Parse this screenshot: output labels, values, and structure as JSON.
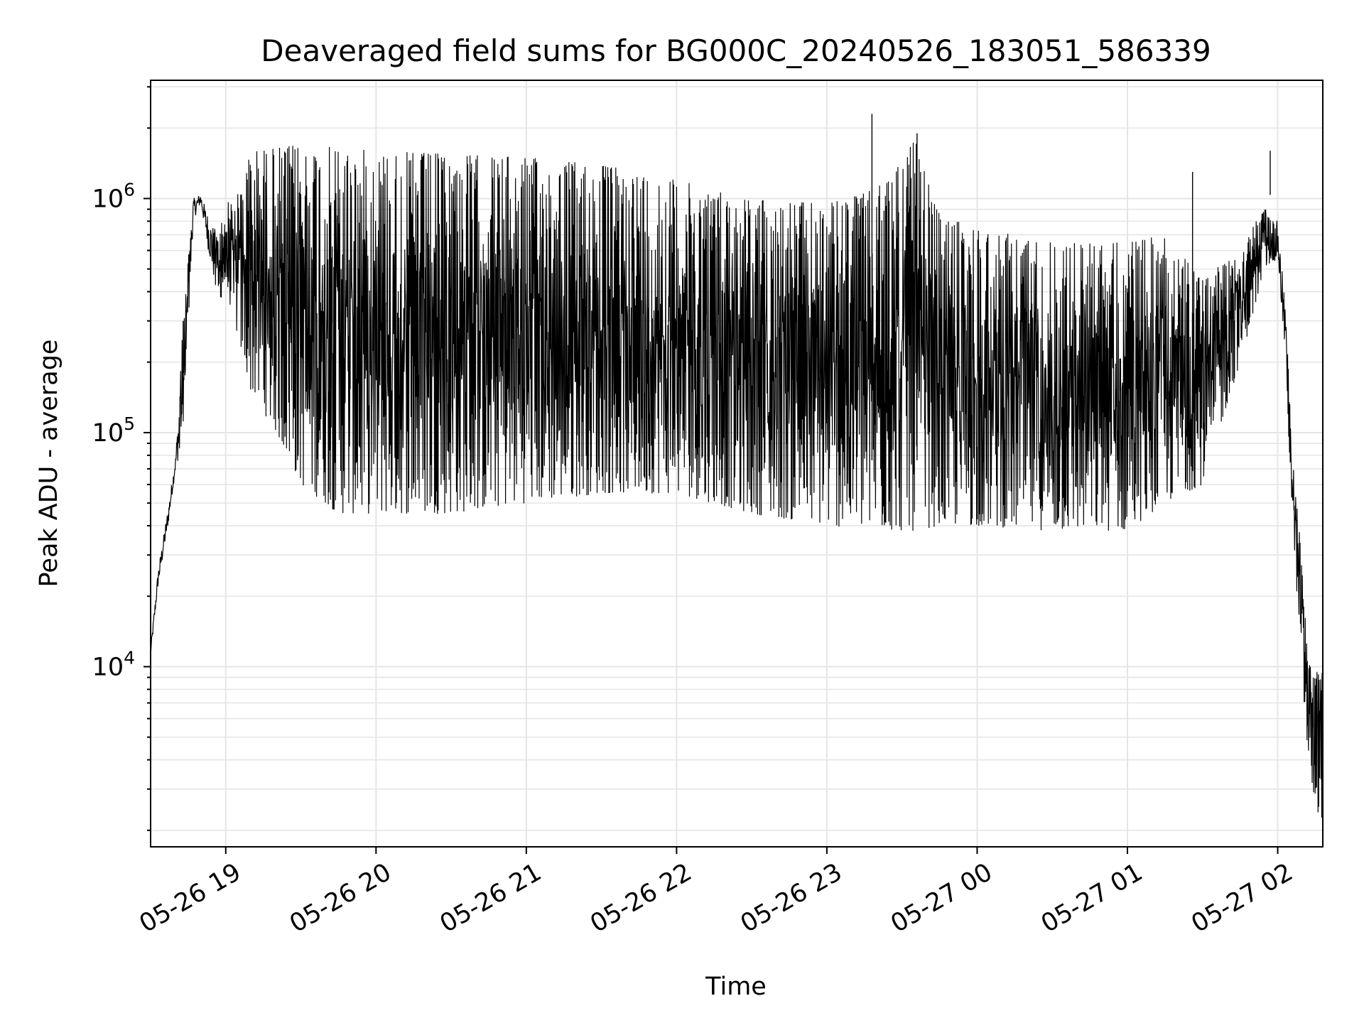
{
  "chart_data": {
    "type": "line",
    "title": "Deaveraged field sums for BG000C_20240526_183051_586339",
    "xlabel": "Time",
    "ylabel": "Peak ADU - average",
    "y_scale": "log",
    "xlim": [
      "2024-05-26 18:30",
      "2024-05-27 02:18"
    ],
    "ylim": [
      1700,
      3200000
    ],
    "x_ticks": [
      {
        "value": "2024-05-26 19:00",
        "label": "05-26 19"
      },
      {
        "value": "2024-05-26 20:00",
        "label": "05-26 20"
      },
      {
        "value": "2024-05-26 21:00",
        "label": "05-26 21"
      },
      {
        "value": "2024-05-26 22:00",
        "label": "05-26 22"
      },
      {
        "value": "2024-05-26 23:00",
        "label": "05-26 23"
      },
      {
        "value": "2024-05-27 00:00",
        "label": "05-27 00"
      },
      {
        "value": "2024-05-27 01:00",
        "label": "05-27 01"
      },
      {
        "value": "2024-05-27 02:00",
        "label": "05-27 02"
      }
    ],
    "y_ticks": [
      {
        "value": 10000,
        "base": "10",
        "exp": "4"
      },
      {
        "value": 100000,
        "base": "10",
        "exp": "5"
      },
      {
        "value": 1000000,
        "base": "10",
        "exp": "6"
      }
    ],
    "grid": true,
    "line_color": "#000000",
    "grid_color": "#e5e5e5",
    "envelope": {
      "description_points": "time, lower bound, upper bound of the rapidly oscillating signal",
      "points": [
        {
          "x": "2024-05-26 18:30",
          "low": 11000,
          "high": 12000
        },
        {
          "x": "2024-05-26 18:33",
          "low": 22000,
          "high": 26000
        },
        {
          "x": "2024-05-26 18:37",
          "low": 40000,
          "high": 48000
        },
        {
          "x": "2024-05-26 18:40",
          "low": 70000,
          "high": 80000
        },
        {
          "x": "2024-05-26 18:43",
          "low": 90000,
          "high": 300000
        },
        {
          "x": "2024-05-26 18:47",
          "low": 800000,
          "high": 1000000
        },
        {
          "x": "2024-05-26 18:50",
          "low": 950000,
          "high": 1050000
        },
        {
          "x": "2024-05-26 18:53",
          "low": 600000,
          "high": 850000
        },
        {
          "x": "2024-05-26 18:57",
          "low": 350000,
          "high": 700000
        },
        {
          "x": "2024-05-26 19:00",
          "low": 420000,
          "high": 950000
        },
        {
          "x": "2024-05-26 19:05",
          "low": 250000,
          "high": 1050000
        },
        {
          "x": "2024-05-26 19:10",
          "low": 150000,
          "high": 1600000
        },
        {
          "x": "2024-05-26 19:20",
          "low": 100000,
          "high": 1650000
        },
        {
          "x": "2024-05-26 19:30",
          "low": 60000,
          "high": 1700000
        },
        {
          "x": "2024-05-26 19:45",
          "low": 45000,
          "high": 1650000
        },
        {
          "x": "2024-05-26 20:00",
          "low": 45000,
          "high": 1600000
        },
        {
          "x": "2024-05-26 20:30",
          "low": 45000,
          "high": 1550000
        },
        {
          "x": "2024-05-26 21:00",
          "low": 50000,
          "high": 1500000
        },
        {
          "x": "2024-05-26 21:30",
          "low": 55000,
          "high": 1400000
        },
        {
          "x": "2024-05-26 22:00",
          "low": 55000,
          "high": 1200000
        },
        {
          "x": "2024-05-26 22:30",
          "low": 45000,
          "high": 1000000
        },
        {
          "x": "2024-05-26 23:00",
          "low": 40000,
          "high": 950000
        },
        {
          "x": "2024-05-26 23:20",
          "low": 38000,
          "high": 1100000
        },
        {
          "x": "2024-05-26 23:35",
          "low": 38000,
          "high": 1800000
        },
        {
          "x": "2024-05-26 23:45",
          "low": 40000,
          "high": 850000
        },
        {
          "x": "2024-05-27 00:00",
          "low": 40000,
          "high": 750000
        },
        {
          "x": "2024-05-27 00:30",
          "low": 38000,
          "high": 650000
        },
        {
          "x": "2024-05-27 01:00",
          "low": 38000,
          "high": 650000
        },
        {
          "x": "2024-05-27 01:15",
          "low": 50000,
          "high": 700000
        },
        {
          "x": "2024-05-27 01:30",
          "low": 60000,
          "high": 450000
        },
        {
          "x": "2024-05-27 01:45",
          "low": 200000,
          "high": 650000
        },
        {
          "x": "2024-05-27 01:55",
          "low": 500000,
          "high": 900000
        },
        {
          "x": "2024-05-27 02:00",
          "low": 550000,
          "high": 800000
        },
        {
          "x": "2024-05-27 02:03",
          "low": 200000,
          "high": 350000
        },
        {
          "x": "2024-05-27 02:06",
          "low": 40000,
          "high": 80000
        },
        {
          "x": "2024-05-27 02:09",
          "low": 12000,
          "high": 35000
        },
        {
          "x": "2024-05-27 02:12",
          "low": 4000,
          "high": 11000
        },
        {
          "x": "2024-05-27 02:15",
          "low": 2500,
          "high": 9000
        },
        {
          "x": "2024-05-27 02:18",
          "low": 2200,
          "high": 12000
        }
      ]
    },
    "peaks": [
      {
        "x": "2024-05-26 23:18",
        "y": 2300000
      },
      {
        "x": "2024-05-26 23:36",
        "y": 1900000
      },
      {
        "x": "2024-05-27 01:26",
        "y": 1300000
      },
      {
        "x": "2024-05-27 01:57",
        "y": 1600000
      },
      {
        "x": "2024-05-26 18:43",
        "y": 300000
      }
    ]
  }
}
